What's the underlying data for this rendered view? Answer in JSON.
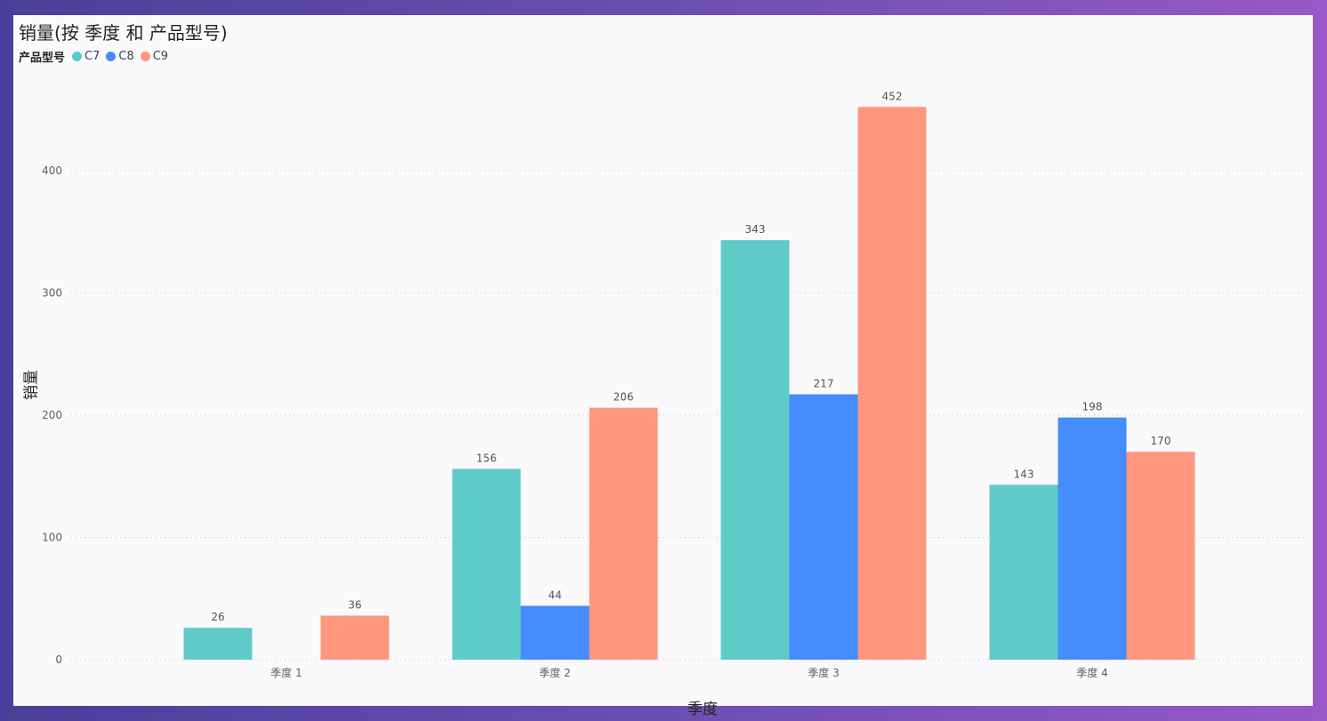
{
  "chart_data": {
    "type": "bar",
    "title": "销量(按 季度 和 产品型号)",
    "legend_title": "产品型号",
    "legend_position": "top-left",
    "xlabel": "季度",
    "ylabel": "销量",
    "ylim": [
      0,
      480
    ],
    "yticks": [
      0,
      100,
      200,
      300,
      400
    ],
    "grid": true,
    "categories": [
      "季度 1",
      "季度 2",
      "季度 3",
      "季度 4"
    ],
    "series": [
      {
        "name": "C7",
        "color": "#5ecbc8",
        "values": [
          26,
          156,
          343,
          143
        ]
      },
      {
        "name": "C8",
        "color": "#448cff",
        "values": [
          null,
          44,
          217,
          198
        ]
      },
      {
        "name": "C9",
        "color": "#ff977e",
        "values": [
          36,
          206,
          452,
          170
        ]
      }
    ]
  }
}
